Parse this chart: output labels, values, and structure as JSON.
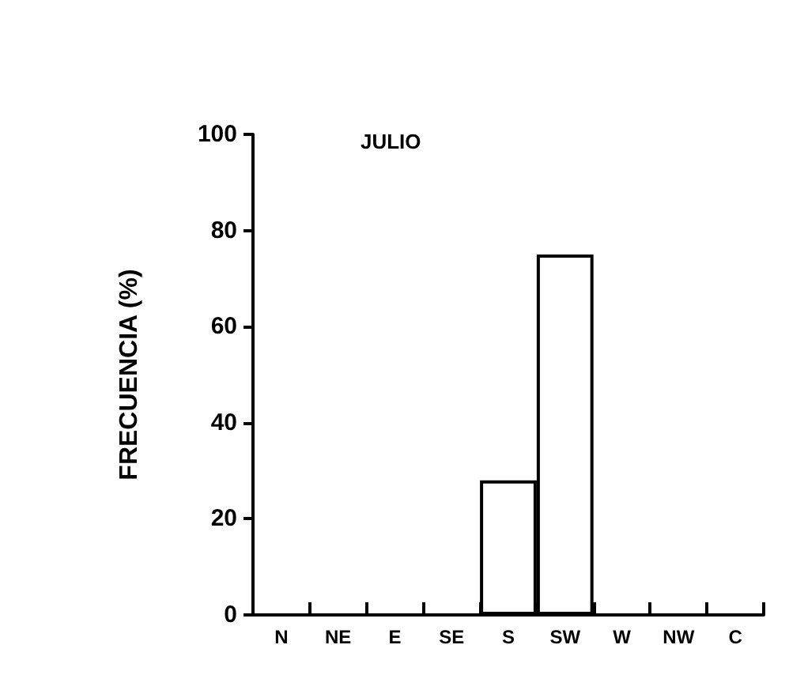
{
  "chart_data": {
    "type": "bar",
    "title": "JULIO",
    "ylabel": "FRECUENCIA (%)",
    "categories": [
      "N",
      "NE",
      "E",
      "SE",
      "S",
      "SW",
      "W",
      "NW",
      "C"
    ],
    "values": [
      0,
      0,
      0,
      0,
      28,
      75,
      0,
      0,
      0
    ],
    "color": "#ffffff",
    "ylim": [
      0,
      100
    ],
    "yticks": [
      0,
      20,
      40,
      60,
      80,
      100
    ],
    "grid": false
  }
}
